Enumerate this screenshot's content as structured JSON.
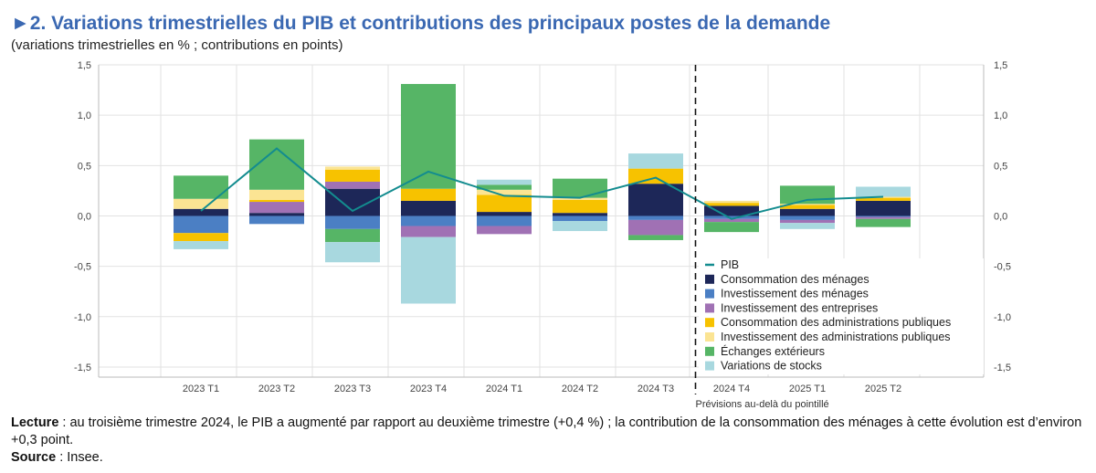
{
  "title": "►2. Variations trimestrielles du PIB et contributions des principaux postes de la demande",
  "subtitle": "(variations trimestrielles en % ; contributions en points)",
  "forecast_note": "Prévisions au-delà du pointillé",
  "colors": {
    "title": "#3a68b2",
    "PIB": "#138c8f",
    "Consommation des ménages": "#1d2758",
    "Investissement des ménages": "#4b7fc4",
    "Investissement des entreprises": "#a071b4",
    "Consommation des administrations publiques": "#f7c200",
    "Investissement des administrations publiques": "#fbe493",
    "Échanges extérieurs": "#56b566",
    "Variations de stocks": "#a8d8df"
  },
  "chart_data": {
    "type": "bar",
    "stacked": true,
    "categories": [
      "2023 T1",
      "2023 T2",
      "2023 T3",
      "2023 T4",
      "2024 T1",
      "2024 T2",
      "2024 T3",
      "2024 T4",
      "2025 T1",
      "2025 T2"
    ],
    "ylim": [
      -1.6,
      1.5
    ],
    "yticks": [
      "1,5",
      "1,0",
      "0,5",
      "0,0",
      "-0,5",
      "-1,0",
      "-1,5"
    ],
    "ytick_values": [
      1.5,
      1.0,
      0.5,
      0.0,
      -0.5,
      -1.0,
      -1.5
    ],
    "forecast_after": "2024 T3",
    "legend_position": "bottom-right",
    "grid": true,
    "series": [
      {
        "name": "Consommation des ménages",
        "values": [
          0.07,
          0.03,
          0.27,
          0.15,
          0.04,
          0.03,
          0.32,
          0.1,
          0.07,
          0.15
        ]
      },
      {
        "name": "Investissement des ménages",
        "values": [
          -0.17,
          -0.08,
          -0.13,
          -0.1,
          -0.1,
          -0.05,
          -0.04,
          -0.03,
          -0.04,
          -0.01
        ]
      },
      {
        "name": "Investissement des entreprises",
        "values": [
          0.0,
          0.11,
          0.07,
          -0.11,
          -0.08,
          0.0,
          -0.15,
          -0.03,
          -0.03,
          -0.02
        ]
      },
      {
        "name": "Consommation des administrations publiques",
        "values": [
          -0.08,
          0.02,
          0.12,
          0.12,
          0.17,
          0.13,
          0.15,
          0.03,
          0.04,
          0.03
        ]
      },
      {
        "name": "Investissement des administrations publiques",
        "values": [
          0.1,
          0.1,
          0.03,
          0.0,
          0.05,
          0.02,
          0.0,
          0.02,
          0.01,
          0.01
        ]
      },
      {
        "name": "Échanges extérieurs",
        "values": [
          0.23,
          0.5,
          -0.13,
          1.04,
          0.05,
          0.19,
          -0.05,
          -0.1,
          0.18,
          -0.08
        ]
      },
      {
        "name": "Variations de stocks",
        "values": [
          -0.08,
          0.0,
          -0.2,
          -0.66,
          0.05,
          -0.1,
          0.15,
          0.0,
          -0.06,
          0.1
        ]
      }
    ],
    "line": {
      "name": "PIB",
      "values": [
        0.05,
        0.67,
        0.05,
        0.44,
        0.2,
        0.18,
        0.38,
        -0.03,
        0.16,
        0.19
      ]
    }
  },
  "legend": [
    "PIB",
    "Consommation des ménages",
    "Investissement des ménages",
    "Investissement des entreprises",
    "Consommation des administrations publiques",
    "Investissement des administrations publiques",
    "Échanges extérieurs",
    "Variations de stocks"
  ],
  "footer": {
    "lecture_label": "Lecture",
    "lecture_text": " : au troisième trimestre 2024, le PIB a augmenté par rapport au deuxième trimestre (+0,4 %) ; la contribution de la consommation des ménages à cette évolution est d’environ +0,3 point.",
    "source_label": "Source",
    "source_text": " : Insee."
  }
}
